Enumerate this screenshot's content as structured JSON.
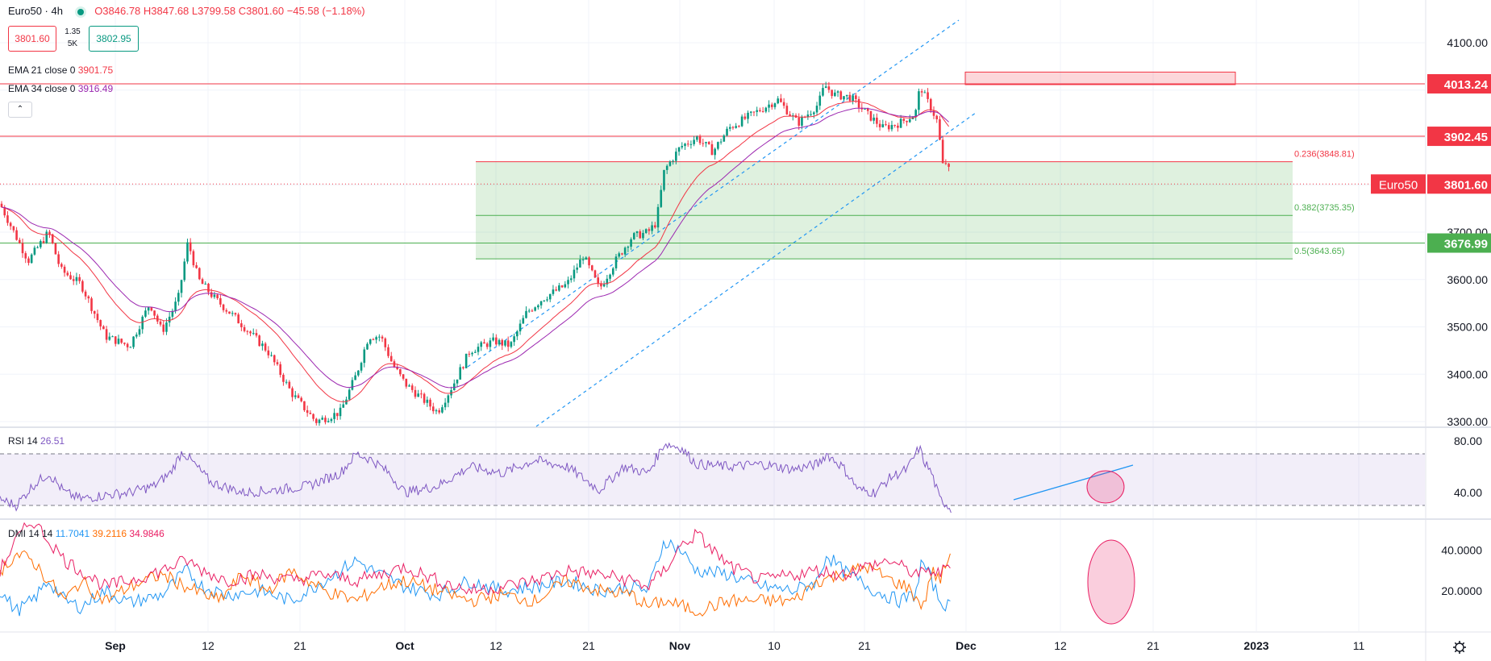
{
  "header": {
    "symbol": "Euro50 · 4h",
    "ohlc": "O3846.78 H3847.68 L3799.58 C3801.60 −45.58 (−1.18%)",
    "bid": "3801.60",
    "spread_top": "1.35",
    "spread_bottom": "5K",
    "ask": "3802.95",
    "collapse_icon": "chevron-up-icon"
  },
  "indicators": {
    "ema21": {
      "label": "EMA 21 close 0",
      "value": "3901.75",
      "color": "#f23645"
    },
    "ema34": {
      "label": "EMA 34 close 0",
      "value": "3916.49",
      "color": "#9c27b0"
    },
    "rsi": {
      "label": "RSI 14",
      "value": "26.51",
      "color": "#7e57c2"
    },
    "dmi": {
      "label": "DMI 14 14",
      "plus_di": "11.7041",
      "minus_di": "39.2116",
      "adx": "34.9846"
    }
  },
  "price_axis": {
    "ticks": [
      "4100.00",
      "3700.00",
      "3600.00",
      "3500.00",
      "3400.00",
      "3300.00"
    ],
    "badges": [
      {
        "label": "",
        "value": "4013.24",
        "color": "#f23645"
      },
      {
        "label": "",
        "value": "3902.45",
        "color": "#f23645"
      },
      {
        "label": "Euro50",
        "value": "3801.60",
        "color": "#f23645"
      },
      {
        "label": "",
        "value": "3676.99",
        "color": "#4caf50"
      }
    ]
  },
  "rsi_axis": {
    "ticks": [
      "80.00",
      "40.00"
    ]
  },
  "dmi_axis": {
    "ticks": [
      "40.0000",
      "20.0000"
    ]
  },
  "time_axis": {
    "labels": [
      "Sep",
      "12",
      "21",
      "Oct",
      "12",
      "21",
      "Nov",
      "10",
      "21",
      "Dec",
      "12",
      "21",
      "2023",
      "11"
    ]
  },
  "footer": {
    "settings_icon": "gear-icon"
  },
  "chart_data": [
    {
      "type": "candlestick",
      "timeframe": "4h",
      "ylim": [
        3290,
        4150
      ],
      "fib_levels": [
        {
          "label": "0.236(3848.81)",
          "value": 3848.81
        },
        {
          "label": "0.382(3735.35)",
          "value": 3735.35
        },
        {
          "label": "0.5(3643.65)",
          "value": 3643.65
        }
      ],
      "horizontal_lines": [
        4013.24,
        3902.45,
        3676.99
      ],
      "last_price": 3801.6,
      "path_points": [
        [
          0,
          3760
        ],
        [
          20,
          3690
        ],
        [
          35,
          3640
        ],
        [
          60,
          3700
        ],
        [
          75,
          3620
        ],
        [
          100,
          3590
        ],
        [
          130,
          3480
        ],
        [
          160,
          3460
        ],
        [
          185,
          3550
        ],
        [
          200,
          3490
        ],
        [
          220,
          3560
        ],
        [
          232,
          3680
        ],
        [
          245,
          3600
        ],
        [
          265,
          3560
        ],
        [
          290,
          3520
        ],
        [
          330,
          3450
        ],
        [
          360,
          3360
        ],
        [
          390,
          3300
        ],
        [
          420,
          3320
        ],
        [
          440,
          3400
        ],
        [
          455,
          3480
        ],
        [
          470,
          3480
        ],
        [
          485,
          3420
        ],
        [
          500,
          3380
        ],
        [
          520,
          3350
        ],
        [
          540,
          3320
        ],
        [
          560,
          3380
        ],
        [
          580,
          3450
        ],
        [
          610,
          3470
        ],
        [
          630,
          3460
        ],
        [
          650,
          3530
        ],
        [
          670,
          3560
        ],
        [
          700,
          3590
        ],
        [
          720,
          3650
        ],
        [
          740,
          3580
        ],
        [
          760,
          3640
        ],
        [
          780,
          3690
        ],
        [
          800,
          3700
        ],
        [
          810,
          3720
        ],
        [
          820,
          3830
        ],
        [
          840,
          3880
        ],
        [
          860,
          3900
        ],
        [
          880,
          3870
        ],
        [
          900,
          3920
        ],
        [
          930,
          3950
        ],
        [
          960,
          3980
        ],
        [
          985,
          3930
        ],
        [
          1010,
          3970
        ],
        [
          1018,
          4010
        ],
        [
          1030,
          3990
        ],
        [
          1050,
          3985
        ],
        [
          1070,
          3950
        ],
        [
          1090,
          3920
        ],
        [
          1110,
          3930
        ],
        [
          1130,
          3950
        ],
        [
          1136,
          4010
        ],
        [
          1142,
          3985
        ],
        [
          1150,
          3960
        ],
        [
          1158,
          3930
        ],
        [
          1163,
          3840
        ],
        [
          1170,
          3850
        ],
        [
          1173,
          3801.6
        ]
      ],
      "x_domain": [
        0,
        1500
      ]
    },
    {
      "type": "line",
      "name": "RSI 14",
      "ylim": [
        20,
        90
      ],
      "bands": [
        70,
        30
      ],
      "path_points": [
        [
          0,
          35
        ],
        [
          20,
          30
        ],
        [
          40,
          45
        ],
        [
          60,
          55
        ],
        [
          80,
          40
        ],
        [
          100,
          35
        ],
        [
          130,
          38
        ],
        [
          160,
          40
        ],
        [
          190,
          45
        ],
        [
          210,
          55
        ],
        [
          225,
          72
        ],
        [
          240,
          62
        ],
        [
          260,
          48
        ],
        [
          300,
          40
        ],
        [
          340,
          42
        ],
        [
          380,
          45
        ],
        [
          420,
          55
        ],
        [
          440,
          70
        ],
        [
          460,
          65
        ],
        [
          480,
          55
        ],
        [
          500,
          40
        ],
        [
          540,
          45
        ],
        [
          580,
          60
        ],
        [
          620,
          55
        ],
        [
          660,
          65
        ],
        [
          700,
          60
        ],
        [
          740,
          42
        ],
        [
          770,
          60
        ],
        [
          800,
          55
        ],
        [
          820,
          78
        ],
        [
          840,
          75
        ],
        [
          860,
          62
        ],
        [
          900,
          60
        ],
        [
          940,
          62
        ],
        [
          980,
          58
        ],
        [
          1010,
          62
        ],
        [
          1020,
          70
        ],
        [
          1040,
          60
        ],
        [
          1060,
          42
        ],
        [
          1080,
          40
        ],
        [
          1100,
          52
        ],
        [
          1120,
          58
        ],
        [
          1135,
          75
        ],
        [
          1140,
          65
        ],
        [
          1150,
          55
        ],
        [
          1160,
          35
        ],
        [
          1170,
          30
        ],
        [
          1174,
          26.51
        ]
      ]
    },
    {
      "type": "line",
      "name": "DMI 14 14",
      "ylim": [
        0,
        55
      ],
      "series": [
        {
          "name": "+DI",
          "color": "#2196f3",
          "path_points": [
            [
              0,
              20
            ],
            [
              20,
              10
            ],
            [
              40,
              15
            ],
            [
              60,
              25
            ],
            [
              80,
              15
            ],
            [
              100,
              12
            ],
            [
              130,
              20
            ],
            [
              160,
              14
            ],
            [
              200,
              18
            ],
            [
              230,
              30
            ],
            [
              250,
              22
            ],
            [
              280,
              18
            ],
            [
              320,
              20
            ],
            [
              360,
              15
            ],
            [
              400,
              25
            ],
            [
              440,
              35
            ],
            [
              460,
              30
            ],
            [
              500,
              22
            ],
            [
              540,
              18
            ],
            [
              580,
              25
            ],
            [
              620,
              20
            ],
            [
              660,
              22
            ],
            [
              700,
              25
            ],
            [
              740,
              20
            ],
            [
              780,
              22
            ],
            [
              800,
              20
            ],
            [
              820,
              45
            ],
            [
              840,
              40
            ],
            [
              860,
              30
            ],
            [
              900,
              28
            ],
            [
              940,
              22
            ],
            [
              980,
              20
            ],
            [
              1010,
              25
            ],
            [
              1020,
              38
            ],
            [
              1040,
              30
            ],
            [
              1080,
              20
            ],
            [
              1110,
              15
            ],
            [
              1130,
              18
            ],
            [
              1138,
              35
            ],
            [
              1150,
              25
            ],
            [
              1160,
              15
            ],
            [
              1174,
              11.7041
            ]
          ]
        },
        {
          "name": "-DI",
          "color": "#ff6d00",
          "path_points": [
            [
              0,
              30
            ],
            [
              20,
              38
            ],
            [
              40,
              35
            ],
            [
              60,
              25
            ],
            [
              80,
              15
            ],
            [
              100,
              25
            ],
            [
              130,
              15
            ],
            [
              160,
              22
            ],
            [
              200,
              28
            ],
            [
              240,
              20
            ],
            [
              270,
              15
            ],
            [
              300,
              28
            ],
            [
              330,
              20
            ],
            [
              360,
              30
            ],
            [
              400,
              20
            ],
            [
              440,
              15
            ],
            [
              470,
              22
            ],
            [
              500,
              25
            ],
            [
              540,
              20
            ],
            [
              580,
              15
            ],
            [
              620,
              18
            ],
            [
              660,
              15
            ],
            [
              700,
              25
            ],
            [
              740,
              20
            ],
            [
              780,
              18
            ],
            [
              800,
              12
            ],
            [
              820,
              15
            ],
            [
              860,
              10
            ],
            [
              900,
              15
            ],
            [
              940,
              15
            ],
            [
              980,
              15
            ],
            [
              1010,
              25
            ],
            [
              1040,
              28
            ],
            [
              1070,
              32
            ],
            [
              1100,
              25
            ],
            [
              1120,
              22
            ],
            [
              1140,
              12
            ],
            [
              1150,
              30
            ],
            [
              1160,
              25
            ],
            [
              1174,
              39.2116
            ]
          ]
        },
        {
          "name": "ADX",
          "color": "#e91e63",
          "path_points": [
            [
              0,
              30
            ],
            [
              20,
              45
            ],
            [
              40,
              55
            ],
            [
              60,
              45
            ],
            [
              80,
              35
            ],
            [
              100,
              30
            ],
            [
              130,
              22
            ],
            [
              160,
              25
            ],
            [
              200,
              30
            ],
            [
              230,
              35
            ],
            [
              250,
              30
            ],
            [
              280,
              25
            ],
            [
              320,
              28
            ],
            [
              360,
              25
            ],
            [
              400,
              28
            ],
            [
              440,
              25
            ],
            [
              470,
              28
            ],
            [
              500,
              32
            ],
            [
              540,
              25
            ],
            [
              580,
              20
            ],
            [
              620,
              22
            ],
            [
              660,
              25
            ],
            [
              700,
              30
            ],
            [
              740,
              28
            ],
            [
              780,
              25
            ],
            [
              800,
              22
            ],
            [
              820,
              30
            ],
            [
              840,
              42
            ],
            [
              860,
              48
            ],
            [
              880,
              40
            ],
            [
              900,
              32
            ],
            [
              940,
              25
            ],
            [
              980,
              28
            ],
            [
              1010,
              30
            ],
            [
              1040,
              28
            ],
            [
              1070,
              32
            ],
            [
              1100,
              35
            ],
            [
              1120,
              30
            ],
            [
              1140,
              28
            ],
            [
              1150,
              30
            ],
            [
              1160,
              28
            ],
            [
              1174,
              34.9846
            ]
          ]
        }
      ]
    }
  ]
}
